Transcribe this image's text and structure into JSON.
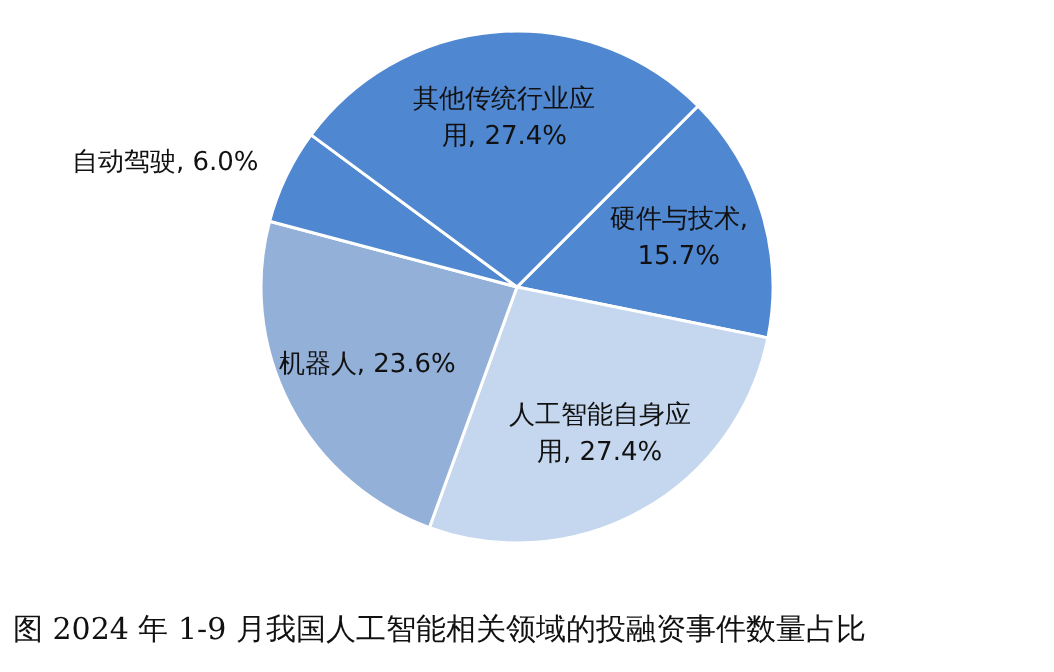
{
  "chart_data": {
    "type": "pie",
    "annotations": [
      "图  2024 年 1-9 月我国人工智能相关领域的投融资事件数量占比"
    ],
    "categories": [
      "硬件与技术",
      "人工智能自身应用",
      "机器人",
      "自动驾驶",
      "其他传统行业应用"
    ],
    "values": [
      15.7,
      27.4,
      23.6,
      6.0,
      27.4
    ],
    "value_labels": [
      ", 15.7%",
      ", 27.4%",
      ", 23.6%",
      ", 6.0%",
      ", 27.4%"
    ],
    "colors": [
      "#4f87d0",
      "#c5d7ef",
      "#93b0d8",
      "#4f87d0",
      "#4f87d0"
    ],
    "legend": false
  }
}
